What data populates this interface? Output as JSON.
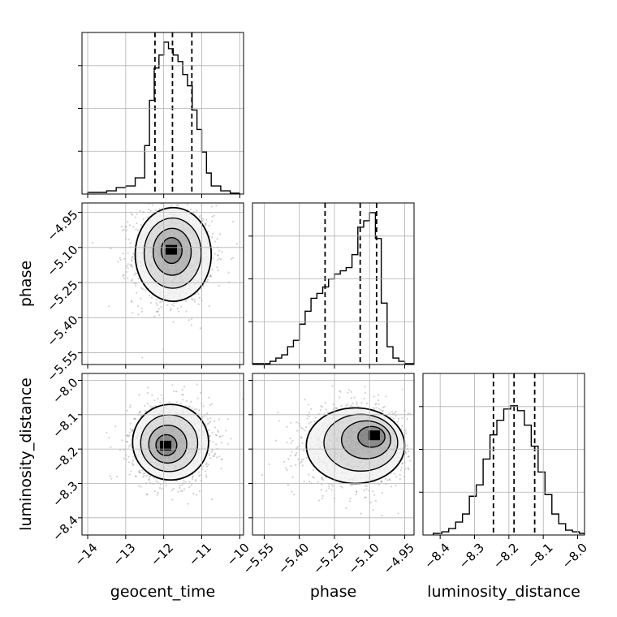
{
  "chart_data": {
    "type": "corner",
    "parameters": [
      {
        "name": "geocent_time",
        "range": [
          -14.15,
          -9.9
        ],
        "ticks": [
          -14,
          -13,
          -12,
          -11,
          -10
        ],
        "tick_labels": [
          "−14",
          "−13",
          "−12",
          "−11",
          "−10"
        ],
        "quantiles": [
          -12.23,
          -11.77,
          -11.26
        ],
        "histogram": {
          "bin_edges": [
            -14.0,
            -13.75,
            -13.5,
            -13.25,
            -13.0,
            -12.75,
            -12.5,
            -12.375,
            -12.25,
            -12.125,
            -12.0,
            -11.875,
            -11.75,
            -11.625,
            -11.5,
            -11.375,
            -11.25,
            -11.125,
            -11.0,
            -10.875,
            -10.75,
            -10.5,
            -10.25,
            -10.0
          ],
          "heights": [
            0.01,
            0.01,
            0.02,
            0.04,
            0.05,
            0.1,
            0.3,
            0.58,
            0.78,
            0.86,
            0.94,
            0.9,
            0.86,
            0.82,
            0.74,
            0.67,
            0.52,
            0.4,
            0.26,
            0.13,
            0.05,
            0.02,
            0.005
          ]
        }
      },
      {
        "name": "phase",
        "range": [
          -5.6,
          -4.91
        ],
        "ticks": [
          -5.55,
          -5.4,
          -5.25,
          -5.1,
          -4.95
        ],
        "tick_labels": [
          "−5.55",
          "−5.40",
          "−5.25",
          "−5.10",
          "−4.95"
        ],
        "quantiles": [
          -5.29,
          -5.14,
          -5.07
        ],
        "histogram": {
          "bin_edges": [
            -5.6,
            -5.525,
            -5.5,
            -5.475,
            -5.45,
            -5.425,
            -5.4,
            -5.375,
            -5.35,
            -5.325,
            -5.3,
            -5.275,
            -5.25,
            -5.225,
            -5.2,
            -5.175,
            -5.15,
            -5.125,
            -5.1,
            -5.075,
            -5.05,
            -5.025,
            -5.0,
            -4.975,
            -4.95,
            -4.91
          ],
          "heights": [
            0.005,
            0.02,
            0.04,
            0.06,
            0.11,
            0.15,
            0.25,
            0.33,
            0.41,
            0.44,
            0.48,
            0.53,
            0.56,
            0.58,
            0.6,
            0.68,
            0.85,
            0.89,
            0.94,
            0.78,
            0.38,
            0.11,
            0.04,
            0.02,
            0.005
          ]
        }
      },
      {
        "name": "luminosity_distance",
        "range": [
          -8.45,
          -7.98
        ],
        "ticks": [
          -8.4,
          -8.3,
          -8.2,
          -8.1,
          -8.0
        ],
        "tick_labels": [
          "−8.4",
          "−8.3",
          "−8.2",
          "−8.1",
          "−8.0"
        ],
        "quantiles": [
          -8.245,
          -8.185,
          -8.125
        ],
        "histogram": {
          "bin_edges": [
            -8.42,
            -8.395,
            -8.375,
            -8.355,
            -8.335,
            -8.315,
            -8.295,
            -8.275,
            -8.255,
            -8.235,
            -8.215,
            -8.195,
            -8.175,
            -8.155,
            -8.135,
            -8.115,
            -8.095,
            -8.075,
            -8.055,
            -8.035,
            -8.015,
            -7.995,
            -7.98
          ],
          "heights": [
            0.01,
            0.02,
            0.04,
            0.08,
            0.13,
            0.24,
            0.31,
            0.47,
            0.62,
            0.71,
            0.78,
            0.8,
            0.77,
            0.68,
            0.55,
            0.39,
            0.25,
            0.13,
            0.07,
            0.03,
            0.02,
            0.01
          ]
        }
      }
    ],
    "joint": [
      {
        "x_param": "geocent_time",
        "y_param": "phase",
        "center": [
          -11.75,
          -5.13
        ],
        "spread": [
          0.5,
          0.1
        ],
        "peak": [
          -11.8,
          -5.11
        ]
      },
      {
        "x_param": "geocent_time",
        "y_param": "luminosity_distance",
        "center": [
          -11.82,
          -8.18
        ],
        "spread": [
          0.5,
          0.055
        ],
        "peak": [
          -11.95,
          -8.19
        ]
      },
      {
        "x_param": "phase",
        "y_param": "luminosity_distance",
        "center": [
          -5.16,
          -8.19
        ],
        "spread": [
          0.105,
          0.055
        ],
        "peak": [
          -5.08,
          -8.16
        ]
      }
    ],
    "grid": true,
    "colors": {
      "line": "#000000",
      "grid": "#b0b0b0",
      "points": "#7a7a7a",
      "contour_fill": "#000000"
    }
  }
}
